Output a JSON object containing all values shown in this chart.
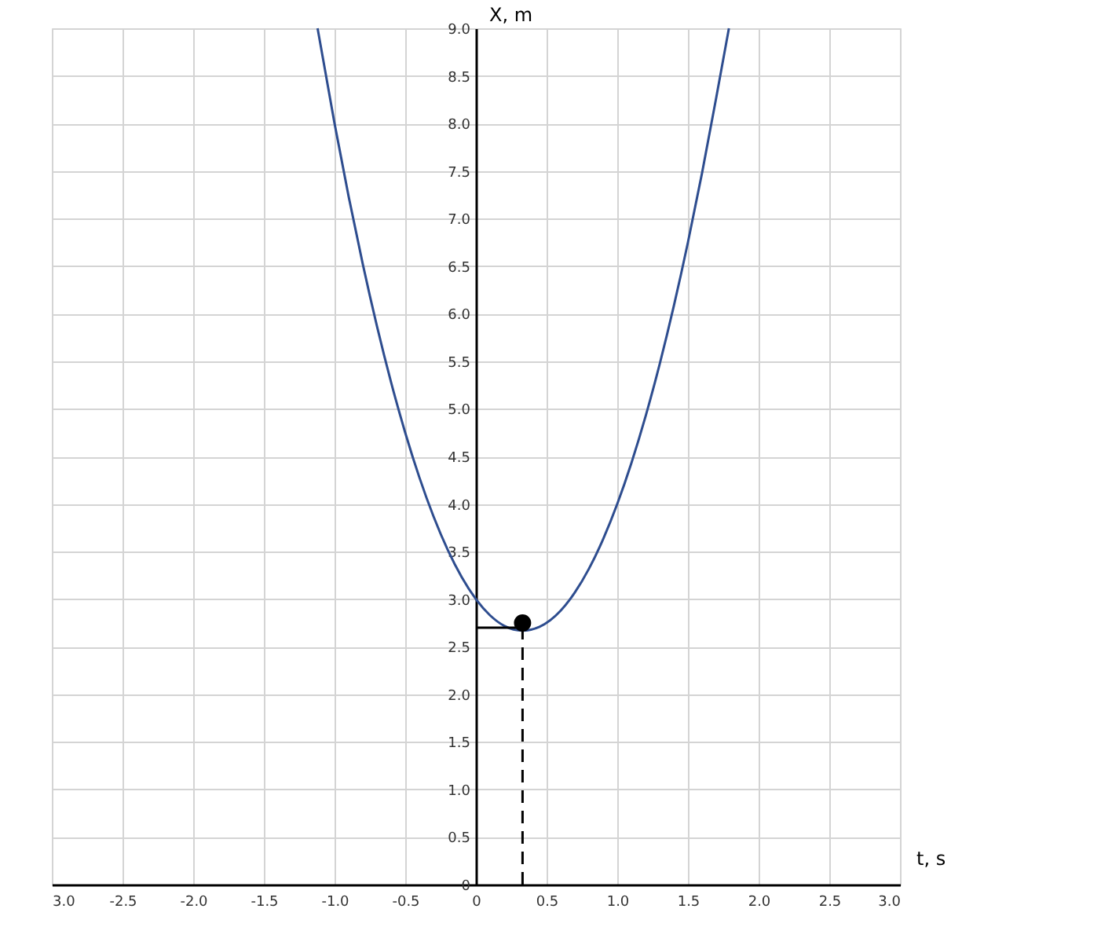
{
  "chart_data": {
    "type": "line",
    "xlabel": "t, s",
    "ylabel": "X, m",
    "xlim": [
      -3,
      3
    ],
    "ylim": [
      0,
      9
    ],
    "xticks": [
      {
        "value": -3,
        "label": "3.0"
      },
      -2.5,
      {
        "value": -2,
        "label": "-2.0"
      },
      -1.5,
      {
        "value": -1,
        "label": "-1.0"
      },
      -0.5,
      0,
      0.5,
      {
        "value": 1,
        "label": "1.0"
      },
      1.5,
      {
        "value": 2,
        "label": "2.0"
      },
      2.5,
      {
        "value": 3,
        "label": "3.0"
      }
    ],
    "yticks": [
      0,
      0.5,
      {
        "value": 1,
        "label": "1.0"
      },
      1.5,
      {
        "value": 2,
        "label": "2.0"
      },
      2.5,
      {
        "value": 3,
        "label": "3.0"
      },
      3.5,
      {
        "value": 4,
        "label": "4.0"
      },
      4.5,
      {
        "value": 5,
        "label": "5.0"
      },
      5.5,
      {
        "value": 6,
        "label": "6.0"
      },
      6.5,
      {
        "value": 7,
        "label": "7.0"
      },
      7.5,
      {
        "value": 8,
        "label": "8.0"
      },
      8.5,
      {
        "value": 9,
        "label": "9.0"
      }
    ],
    "grid": true,
    "series": [
      {
        "color": "#2e4d8f",
        "line_style": "solid",
        "x": [
          -1.12,
          -1.0,
          -0.9,
          -0.8,
          -0.7,
          -0.6,
          -0.5,
          -0.4,
          -0.3,
          -0.2,
          -0.1,
          0,
          0.1,
          0.2,
          0.33,
          0.45,
          0.6,
          0.7,
          0.8,
          0.9,
          1.0,
          1.1,
          1.2,
          1.3,
          1.4,
          1.5,
          1.6,
          1.7,
          1.79
        ],
        "values": [
          9.0,
          8.0,
          7.23,
          6.52,
          5.87,
          5.28,
          4.75,
          4.28,
          3.87,
          3.52,
          3.23,
          3.0,
          2.83,
          2.72,
          2.67,
          2.71,
          2.88,
          3.07,
          3.32,
          3.63,
          4.0,
          4.43,
          4.92,
          5.47,
          6.08,
          6.75,
          7.48,
          8.27,
          9.0
        ]
      },
      {
        "type": "line",
        "color": "#000000",
        "line_style": "dashed",
        "x": [
          0.33,
          0.33
        ],
        "values": [
          0,
          2.67
        ]
      },
      {
        "type": "line",
        "color": "#000000",
        "line_style": "solid",
        "x": [
          0,
          0.33
        ],
        "values": [
          2.7,
          2.7
        ]
      },
      {
        "type": "scatter",
        "color": "#000000",
        "marker": "circle",
        "x": [
          0.33
        ],
        "values": [
          2.75
        ]
      }
    ]
  }
}
